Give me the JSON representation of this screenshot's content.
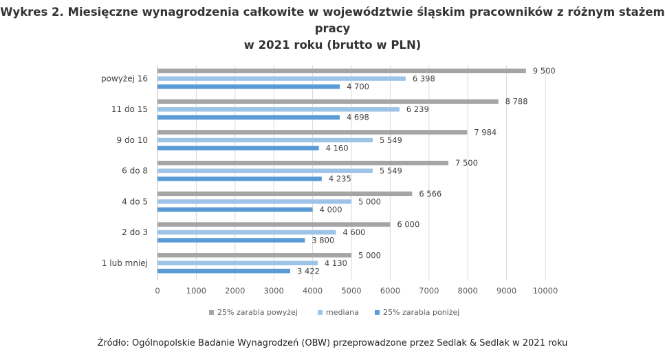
{
  "title_line1": "Wykres 2. Miesięczne wynagrodzenia całkowite w województwie śląskim pracowników z różnym stażem pracy",
  "title_line2": "w 2021 roku (brutto w PLN)",
  "source": "Źródło: Ogólnopolskie Badanie Wynagrodzeń (OBW) przeprowadzone przez Sedlak & Sedlak w 2021 roku",
  "chart_data": {
    "type": "bar",
    "orientation": "horizontal",
    "categories": [
      "powyżej 16",
      "11 do 15",
      "9 do 10",
      "6 do 8",
      "4 do 5",
      "2 do 3",
      "1 lub mniej"
    ],
    "series": [
      {
        "name": "25% zarabia powyżej",
        "color": "#a5a5a5",
        "values": [
          9500,
          8788,
          7984,
          7500,
          6566,
          6000,
          5000
        ],
        "labels": [
          "9 500",
          "8 788",
          "7 984",
          "7 500",
          "6 566",
          "6 000",
          "5 000"
        ]
      },
      {
        "name": "mediana",
        "color": "#9dc3e6",
        "values": [
          6398,
          6239,
          5549,
          5549,
          5000,
          4600,
          4130
        ],
        "labels": [
          "6 398",
          "6 239",
          "5 549",
          "5 549",
          "5 000",
          "4 600",
          "4 130"
        ]
      },
      {
        "name": "25% zarabia poniżej",
        "color": "#5b9bd5",
        "values": [
          4700,
          4698,
          4160,
          4235,
          4000,
          3800,
          3422
        ],
        "labels": [
          "4 700",
          "4 698",
          "4 160",
          "4 235",
          "4 000",
          "3 800",
          "3 422"
        ]
      }
    ],
    "xlim": [
      0,
      10000
    ],
    "xticks": [
      "0",
      "1000",
      "2000",
      "3000",
      "4000",
      "5000",
      "6000",
      "7000",
      "8000",
      "9000",
      "10000"
    ],
    "grid": true,
    "legend_position": "bottom"
  }
}
